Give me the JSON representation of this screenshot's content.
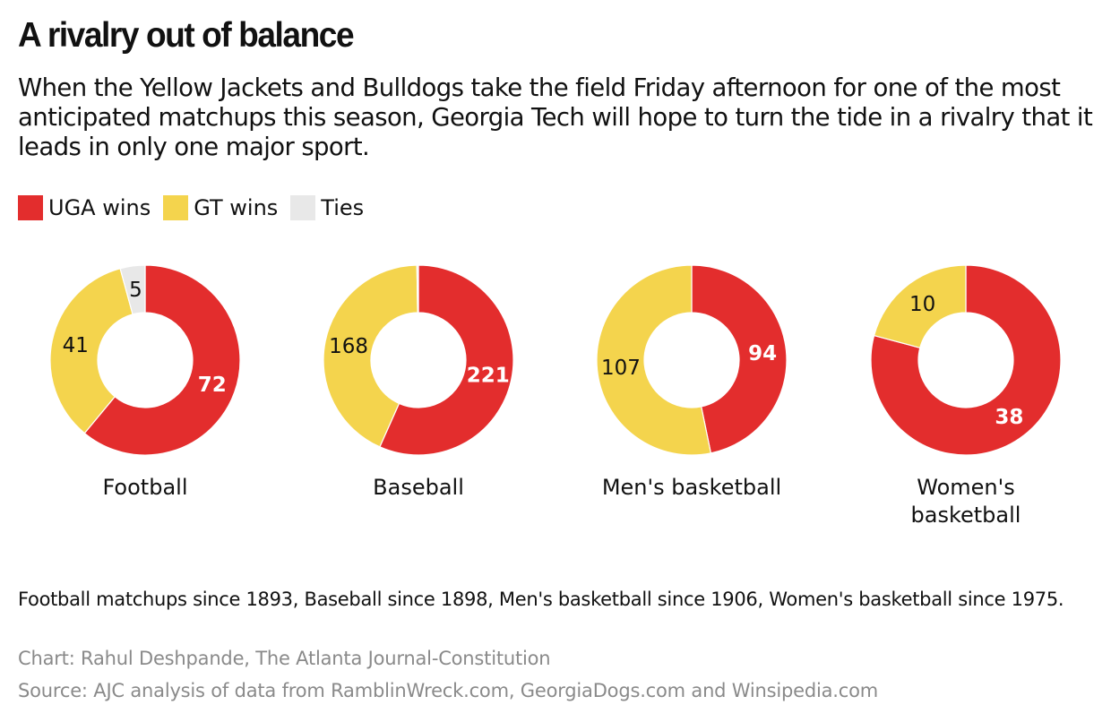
{
  "title": "A rivalry out of balance",
  "subtitle": "When the Yellow Jackets and Bulldogs take the field Friday afternoon for one of the most anticipated matchups this season, Georgia Tech will hope to turn the tide in a rivalry that it leads in only one major sport.",
  "legend": [
    {
      "label": "UGA wins",
      "color": "#e32d2d"
    },
    {
      "label": "GT wins",
      "color": "#f4d44d"
    },
    {
      "label": "Ties",
      "color": "#e8e8e8"
    }
  ],
  "chart_data": {
    "type": "pie",
    "variant": "donut",
    "series_order": [
      "UGA wins",
      "GT wins",
      "Ties"
    ],
    "charts": [
      {
        "category": "Football",
        "values": {
          "UGA wins": 72,
          "GT wins": 41,
          "Ties": 5
        },
        "labels": {
          "UGA wins": "72",
          "GT wins": "41",
          "Ties": "5"
        }
      },
      {
        "category": "Baseball",
        "values": {
          "UGA wins": 221,
          "GT wins": 168,
          "Ties": 1
        },
        "labels": {
          "UGA wins": "221",
          "GT wins": "168",
          "Ties": ""
        }
      },
      {
        "category": "Men's basketball",
        "values": {
          "UGA wins": 94,
          "GT wins": 107,
          "Ties": 0
        },
        "labels": {
          "UGA wins": "94",
          "GT wins": "107",
          "Ties": ""
        }
      },
      {
        "category": "Women's basketball",
        "values": {
          "UGA wins": 38,
          "GT wins": 10,
          "Ties": 0
        },
        "labels": {
          "UGA wins": "38",
          "GT wins": "10",
          "Ties": ""
        }
      }
    ]
  },
  "note": "Football matchups since 1893, Baseball since 1898, Men's basketball since 1906, Women's basketball since 1975.",
  "credit": "Chart: Rahul Deshpande, The Atlanta Journal-Constitution",
  "source": "Source: AJC analysis of data from RamblinWreck.com, GeorgiaDogs.com and Winsipedia.com"
}
